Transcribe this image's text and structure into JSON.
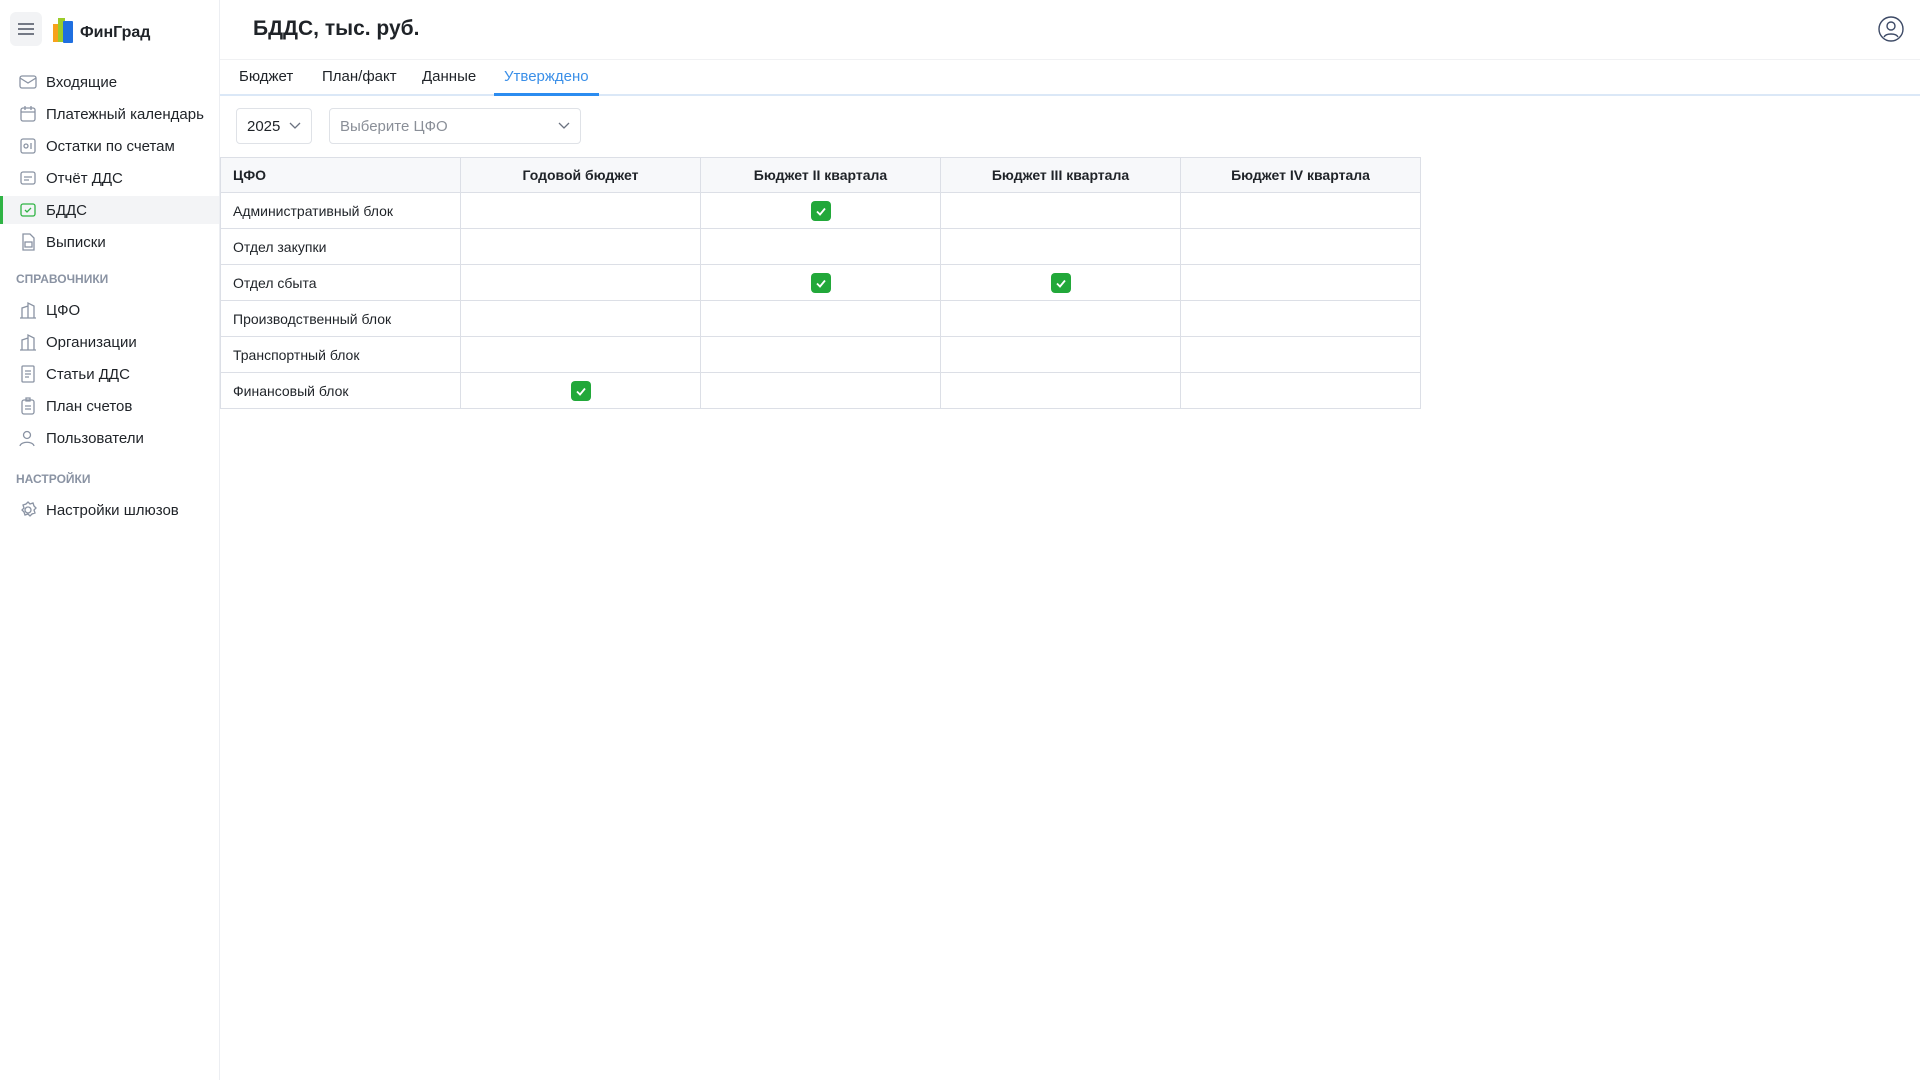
{
  "app": {
    "logo_text": "ФинГрад"
  },
  "sidebar": {
    "items": [
      {
        "label": "Входящие",
        "icon": "mail-icon"
      },
      {
        "label": "Платежный календарь",
        "icon": "calendar-icon"
      },
      {
        "label": "Остатки по счетам",
        "icon": "wallet-icon"
      },
      {
        "label": "Отчёт ДДС",
        "icon": "report-icon"
      },
      {
        "label": "БДДС",
        "icon": "budget-icon",
        "active": true
      },
      {
        "label": "Выписки",
        "icon": "statement-icon"
      }
    ],
    "section_refs": "СПРАВОЧНИКИ",
    "refs": [
      {
        "label": "ЦФО",
        "icon": "building-icon"
      },
      {
        "label": "Организации",
        "icon": "building-icon"
      },
      {
        "label": "Статьи ДДС",
        "icon": "document-icon"
      },
      {
        "label": "План счетов",
        "icon": "clipboard-icon"
      },
      {
        "label": "Пользователи",
        "icon": "users-icon"
      }
    ],
    "section_settings": "НАСТРОЙКИ",
    "settings": [
      {
        "label": "Настройки шлюзов",
        "icon": "gear-icon"
      }
    ]
  },
  "header": {
    "title": "БДДС, тыс. руб."
  },
  "tabs": [
    {
      "label": "Бюджет"
    },
    {
      "label": "План/факт"
    },
    {
      "label": "Данные"
    },
    {
      "label": "Утверждено",
      "active": true
    }
  ],
  "filters": {
    "year": "2025",
    "cfo_placeholder": "Выберите ЦФО"
  },
  "colors": {
    "accent": "#2b8cf0",
    "check": "#22a83a",
    "active_bar": "#2fb344"
  },
  "table": {
    "columns": [
      "ЦФО",
      "Годовой бюджет",
      "Бюджет II квартала",
      "Бюджет III квартала",
      "Бюджет IV квартала"
    ],
    "rows": [
      {
        "name": "Административный блок",
        "approved": [
          false,
          true,
          false,
          false
        ]
      },
      {
        "name": "Отдел закупки",
        "approved": [
          false,
          false,
          false,
          false
        ]
      },
      {
        "name": "Отдел сбыта",
        "approved": [
          false,
          true,
          true,
          false
        ]
      },
      {
        "name": "Производственный блок",
        "approved": [
          false,
          false,
          false,
          false
        ]
      },
      {
        "name": "Транспортный блок",
        "approved": [
          false,
          false,
          false,
          false
        ]
      },
      {
        "name": "Финансовый блок",
        "approved": [
          true,
          false,
          false,
          false
        ]
      }
    ]
  }
}
